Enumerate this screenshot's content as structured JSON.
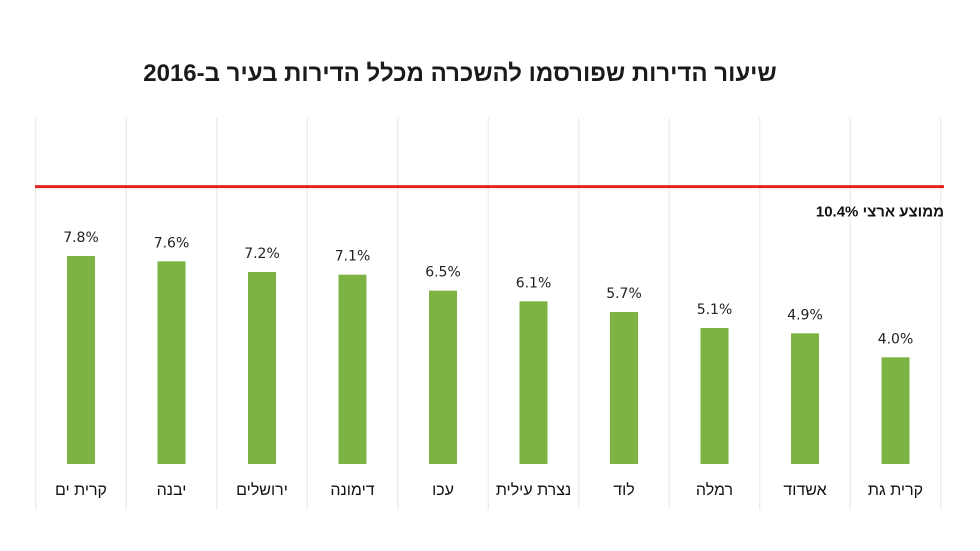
{
  "chart_data": {
    "type": "bar",
    "title": "שיעור הדירות שפורסמו להשכרה מכלל הדירות בעיר ב-2016",
    "categories": [
      "קרית ים",
      "יבנה",
      "ירושלים",
      "דימונה",
      "עכו",
      "נצרת עילית",
      "לוד",
      "רמלה",
      "אשדוד",
      "קרית גת"
    ],
    "values": [
      7.8,
      7.6,
      7.2,
      7.1,
      6.5,
      6.1,
      5.7,
      5.1,
      4.9,
      4.0
    ],
    "value_labels": [
      "7.8%",
      "7.6%",
      "7.2%",
      "7.1%",
      "6.5%",
      "6.1%",
      "5.7%",
      "5.1%",
      "4.9%",
      "4.0%"
    ],
    "reference_line": {
      "value": 10.4,
      "label": "ממוצע ארצי 10.4%"
    },
    "ylim": [
      0,
      12.9
    ],
    "xlabel": "",
    "ylabel": "",
    "grid": "vertical-separators",
    "bar_color": "#7cb342",
    "reference_color": "#e52421",
    "separator_color": "#e6e6e6"
  }
}
